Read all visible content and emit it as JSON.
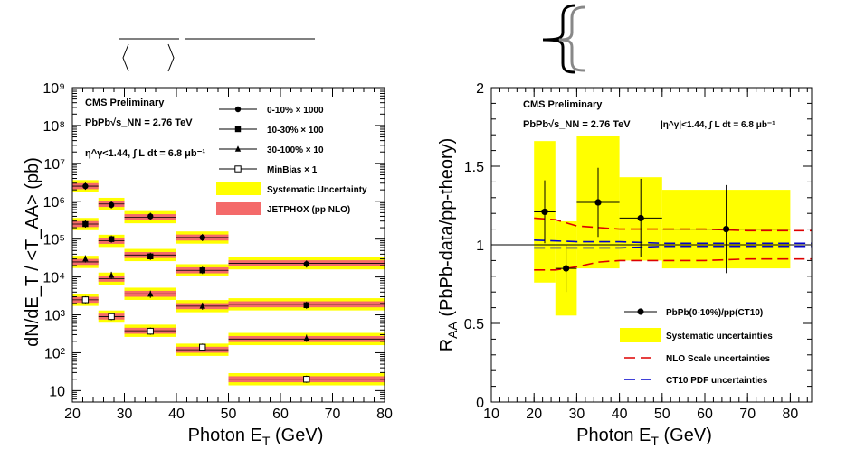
{
  "chart_data": [
    {
      "type": "scatter",
      "panel": "left",
      "y_scale": "log",
      "xlim": [
        20,
        80
      ],
      "ylim": [
        5,
        1000000000
      ],
      "x_ticks": [
        "20",
        "30",
        "40",
        "50",
        "60",
        "70",
        "80"
      ],
      "y_ticks": [
        "10",
        "10²",
        "10³",
        "10⁴",
        "10⁵",
        "10⁶",
        "10⁷",
        "10⁸",
        "10⁹"
      ],
      "xlabel": "Photon E",
      "xlabel_sub": "T",
      "xlabel_unit": "(GeV)",
      "ylabel": "dN/dE_T / <T_AA> (pb)",
      "texts": {
        "cms": "CMS Preliminary",
        "system": "PbPb√s_NN = 2.76 TeV",
        "cut": "η^γ<1.44, ∫ L dt = 6.8 μb⁻¹"
      },
      "bins": [
        [
          20,
          25
        ],
        [
          25,
          30
        ],
        [
          30,
          40
        ],
        [
          40,
          50
        ],
        [
          50,
          80
        ]
      ],
      "legend": [
        {
          "label": "0-10% × 1000",
          "marker": "circle"
        },
        {
          "label": "10-30% × 100",
          "marker": "square"
        },
        {
          "label": "30-100% × 10",
          "marker": "triangle"
        },
        {
          "label": "MinBias × 1",
          "marker": "open-square"
        },
        {
          "label": "Systematic Uncertainty",
          "marker": "yellow-box"
        },
        {
          "label": "JETPHOX (pp NLO)",
          "marker": "red-box"
        }
      ],
      "series": [
        {
          "name": "0-10% × 1000",
          "marker": "circle",
          "x": [
            22.5,
            27.5,
            35,
            45,
            65
          ],
          "y": [
            2500000,
            800000,
            400000,
            110000,
            22000
          ],
          "theory": [
            2500000,
            850000,
            380000,
            110000,
            23000
          ]
        },
        {
          "name": "10-30% × 100",
          "marker": "square",
          "x": [
            22.5,
            27.5,
            35,
            45,
            65
          ],
          "y": [
            250000,
            100000,
            35000,
            15000,
            1800
          ],
          "theory": [
            250000,
            90000,
            38000,
            15000,
            1900
          ]
        },
        {
          "name": "30-100% × 10",
          "marker": "triangle",
          "x": [
            22.5,
            27.5,
            35,
            45,
            65
          ],
          "y": [
            30000,
            11000,
            3500,
            1700,
            240
          ],
          "theory": [
            25000,
            9000,
            3600,
            1700,
            230
          ]
        },
        {
          "name": "MinBias × 1",
          "marker": "open-square",
          "x": [
            22.5,
            27.5,
            35,
            45,
            65
          ],
          "y": [
            2500,
            900,
            370,
            140,
            20
          ],
          "theory": [
            2500,
            900,
            380,
            120,
            20
          ]
        }
      ]
    },
    {
      "type": "scatter",
      "panel": "right",
      "xlim": [
        10,
        85
      ],
      "ylim": [
        0,
        2
      ],
      "x_ticks": [
        "10",
        "20",
        "30",
        "40",
        "50",
        "60",
        "70",
        "80"
      ],
      "y_ticks": [
        "0",
        "0.5",
        "1",
        "1.5",
        "2"
      ],
      "xlabel": "Photon E",
      "xlabel_sub": "T",
      "xlabel_unit": "(GeV)",
      "ylabel_main": "R",
      "ylabel_sub": "AA",
      "ylabel_rest": "(PbPb-data/pp-theory)",
      "texts": {
        "cms": "CMS Preliminary",
        "system": "PbPb√s_NN = 2.76 TeV",
        "cut": "|η^γ|<1.44, ∫ L dt = 6.8 μb⁻¹"
      },
      "legend": [
        {
          "label": "PbPb(0-10%)/pp(CT10)",
          "marker": "circle"
        },
        {
          "label": "Systematic uncertainties",
          "marker": "yellow-box"
        },
        {
          "label": "NLO Scale uncertainties",
          "marker": "red-dash"
        },
        {
          "label": "CT10 PDF uncertainties",
          "marker": "blue-dash"
        }
      ],
      "points": {
        "x": [
          22.5,
          27.5,
          35,
          45,
          65
        ],
        "xerr": [
          2.5,
          2.5,
          5,
          5,
          15
        ],
        "y": [
          1.21,
          0.85,
          1.27,
          1.17,
          1.1
        ],
        "yerr": [
          0.2,
          0.15,
          0.22,
          0.25,
          0.28
        ]
      },
      "sys_boxes": [
        {
          "x": [
            20,
            25
          ],
          "y": [
            0.76,
            1.66
          ]
        },
        {
          "x": [
            25,
            30
          ],
          "y": [
            0.55,
            1.15
          ]
        },
        {
          "x": [
            30,
            40
          ],
          "y": [
            0.85,
            1.69
          ]
        },
        {
          "x": [
            40,
            50
          ],
          "y": [
            0.9,
            1.43
          ]
        },
        {
          "x": [
            50,
            80
          ],
          "y": [
            0.85,
            1.35
          ]
        }
      ],
      "nlo_upper": {
        "x": [
          20,
          25,
          30,
          35,
          40,
          50,
          60,
          70,
          85
        ],
        "y": [
          1.17,
          1.16,
          1.12,
          1.11,
          1.1,
          1.1,
          1.1,
          1.09,
          1.09
        ]
      },
      "nlo_lower": {
        "x": [
          20,
          25,
          30,
          35,
          40,
          50,
          60,
          70,
          85
        ],
        "y": [
          0.84,
          0.84,
          0.86,
          0.89,
          0.9,
          0.9,
          0.9,
          0.91,
          0.91
        ]
      },
      "pdf_upper": {
        "x": [
          20,
          30,
          40,
          50,
          60,
          70,
          85
        ],
        "y": [
          1.03,
          1.02,
          1.02,
          1.01,
          1.01,
          1.01,
          1.01
        ]
      },
      "pdf_lower": {
        "x": [
          20,
          30,
          40,
          50,
          60,
          70,
          85
        ],
        "y": [
          0.98,
          0.98,
          0.98,
          0.99,
          0.99,
          0.99,
          0.99
        ]
      },
      "reference": 1
    }
  ]
}
